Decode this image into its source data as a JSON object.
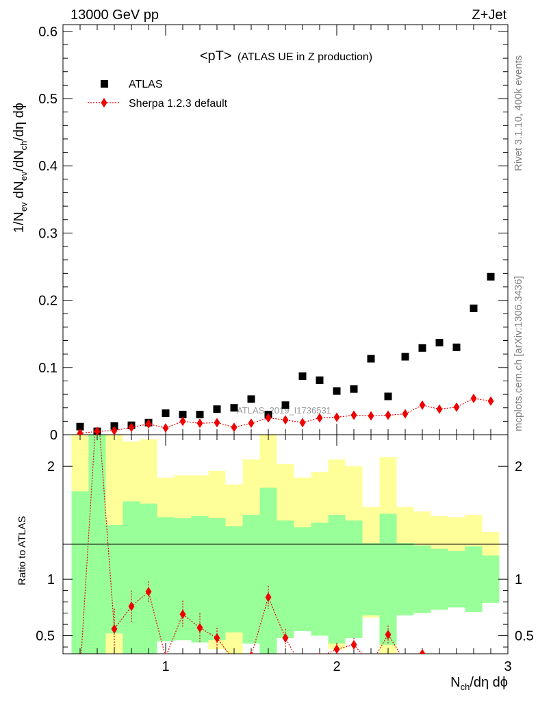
{
  "header": {
    "left": "13000 GeV pp",
    "right": "Z+Jet"
  },
  "side_text": {
    "rivet": "Rivet 3.1.10,  400k events",
    "mcplots": "mcplots.cern.ch [arXiv:1306.3436]"
  },
  "watermark": "ATLAS_2019_I1736531",
  "chart_data": [
    {
      "type": "scatter",
      "title_main": "<pT>",
      "title_sub": "(ATLAS UE in Z production)",
      "ylabel": "1/N_ev dN_ev/dN_ch/dη dφ",
      "xlim": [
        0.4,
        3.0
      ],
      "ylim": [
        0,
        0.61
      ],
      "yticks": [
        0,
        0.1,
        0.2,
        0.3,
        0.4,
        0.5,
        0.6
      ],
      "yticklabels": [
        "0",
        "0.1",
        "0.2",
        "0.3",
        "0.4",
        "0.5",
        "0.6"
      ],
      "legend": [
        "ATLAS",
        "Sherpa 1.2.3 default"
      ],
      "legend_placement": "top-left",
      "series": [
        {
          "name": "ATLAS",
          "marker": "square",
          "color": "#000000",
          "x": [
            0.5,
            0.6,
            0.7,
            0.8,
            0.9,
            1.0,
            1.1,
            1.2,
            1.3,
            1.4,
            1.5,
            1.6,
            1.7,
            1.8,
            1.9,
            2.0,
            2.1,
            2.2,
            2.3,
            2.4,
            2.5,
            2.6,
            2.7,
            2.8,
            2.9
          ],
          "y": [
            0.012,
            0.005,
            0.013,
            0.014,
            0.018,
            0.032,
            0.03,
            0.03,
            0.038,
            0.04,
            0.053,
            0.03,
            0.044,
            0.087,
            0.081,
            0.065,
            0.068,
            0.113,
            0.057,
            0.116,
            0.129,
            0.137,
            0.13,
            0.188,
            0.235
          ]
        },
        {
          "name": "Sherpa 1.2.3 default",
          "marker": "diamond",
          "color": "#ee0000",
          "x": [
            0.5,
            0.6,
            0.7,
            0.8,
            0.9,
            1.0,
            1.1,
            1.2,
            1.3,
            1.4,
            1.5,
            1.6,
            1.7,
            1.8,
            1.9,
            2.0,
            2.1,
            2.2,
            2.3,
            2.4,
            2.5,
            2.6,
            2.7,
            2.8,
            2.9
          ],
          "y": [
            0.002,
            0.005,
            0.006,
            0.011,
            0.016,
            0.01,
            0.02,
            0.017,
            0.018,
            0.011,
            0.017,
            0.025,
            0.022,
            0.018,
            0.025,
            0.026,
            0.029,
            0.028,
            0.029,
            0.031,
            0.044,
            0.038,
            0.041,
            0.054,
            0.05
          ]
        }
      ]
    },
    {
      "type": "line",
      "ylabel": "Ratio to ATLAS",
      "xlabel": "N_ch/dη dφ",
      "xlim": [
        0.4,
        3.0
      ],
      "ylim": [
        0.34,
        2.28
      ],
      "xticks": [
        1,
        2,
        3
      ],
      "xticklabels": [
        "1",
        "2",
        "3"
      ],
      "yticks": [
        0.5,
        1,
        2
      ],
      "yticklabels": [
        "0.5",
        "1",
        "2"
      ],
      "bands": {
        "x_edges": [
          0.45,
          0.55,
          0.65,
          0.75,
          0.85,
          0.95,
          1.05,
          1.15,
          1.25,
          1.35,
          1.45,
          1.55,
          1.65,
          1.75,
          1.85,
          1.95,
          2.05,
          2.15,
          2.25,
          2.35,
          2.45,
          2.55,
          2.65,
          2.75,
          2.85,
          2.95
        ],
        "green_upper": [
          1.78,
          2.28,
          1.48,
          1.69,
          1.67,
          1.55,
          1.54,
          1.56,
          1.54,
          1.47,
          1.57,
          1.81,
          1.52,
          1.46,
          1.5,
          1.57,
          1.52,
          1.32,
          1.58,
          1.32,
          1.3,
          1.27,
          1.25,
          1.29,
          1.21
        ],
        "green_lower": [
          0.22,
          0.0,
          0.52,
          0.32,
          0.34,
          0.45,
          0.46,
          0.44,
          0.46,
          0.53,
          0.43,
          0.19,
          0.48,
          0.54,
          0.5,
          0.43,
          0.48,
          0.68,
          0.42,
          0.68,
          0.7,
          0.73,
          0.75,
          0.71,
          0.79
        ],
        "yellow_upper": [
          2.28,
          2.28,
          2.28,
          2.22,
          2.24,
          1.9,
          1.92,
          1.92,
          1.96,
          1.84,
          2.06,
          2.28,
          2.02,
          1.9,
          1.95,
          2.06,
          2.0,
          1.64,
          2.08,
          1.64,
          1.6,
          1.56,
          1.55,
          1.57,
          1.42
        ],
        "yellow_lower": [
          0.0,
          0.0,
          0.0,
          0.0,
          0.0,
          0.55,
          0.54,
          0.55,
          0.38,
          0.3,
          0.66,
          0.0,
          0.71,
          0.6,
          0.53,
          0.38,
          0.52,
          0.66,
          0.0,
          0.82,
          0.79,
          0.82,
          0.8,
          0.83,
          0.87
        ]
      },
      "series": [
        {
          "name": "Sherpa 1.2.3 default",
          "color": "#ee0000",
          "x": [
            0.5,
            0.6,
            0.7,
            0.8,
            0.9,
            1.0,
            1.1,
            1.2,
            1.3,
            1.4,
            1.5,
            1.6,
            1.7,
            1.8,
            1.9,
            2.0,
            2.1,
            2.2,
            2.3,
            2.4,
            2.5
          ],
          "y": [
            0.17,
            2.6,
            0.56,
            0.76,
            0.89,
            0.31,
            0.69,
            0.57,
            0.48,
            0.28,
            0.32,
            0.84,
            0.48,
            0.21,
            0.31,
            0.38,
            0.42,
            0.25,
            0.51,
            0.27,
            0.34
          ],
          "err": [
            0.0,
            0.0,
            0.18,
            0.14,
            0.09,
            0.0,
            0.12,
            0.13,
            0.09,
            0.0,
            0.0,
            0.1,
            0.08,
            0.0,
            0.0,
            0.05,
            0.06,
            0.0,
            0.08,
            0.0,
            0.0
          ]
        }
      ]
    }
  ]
}
